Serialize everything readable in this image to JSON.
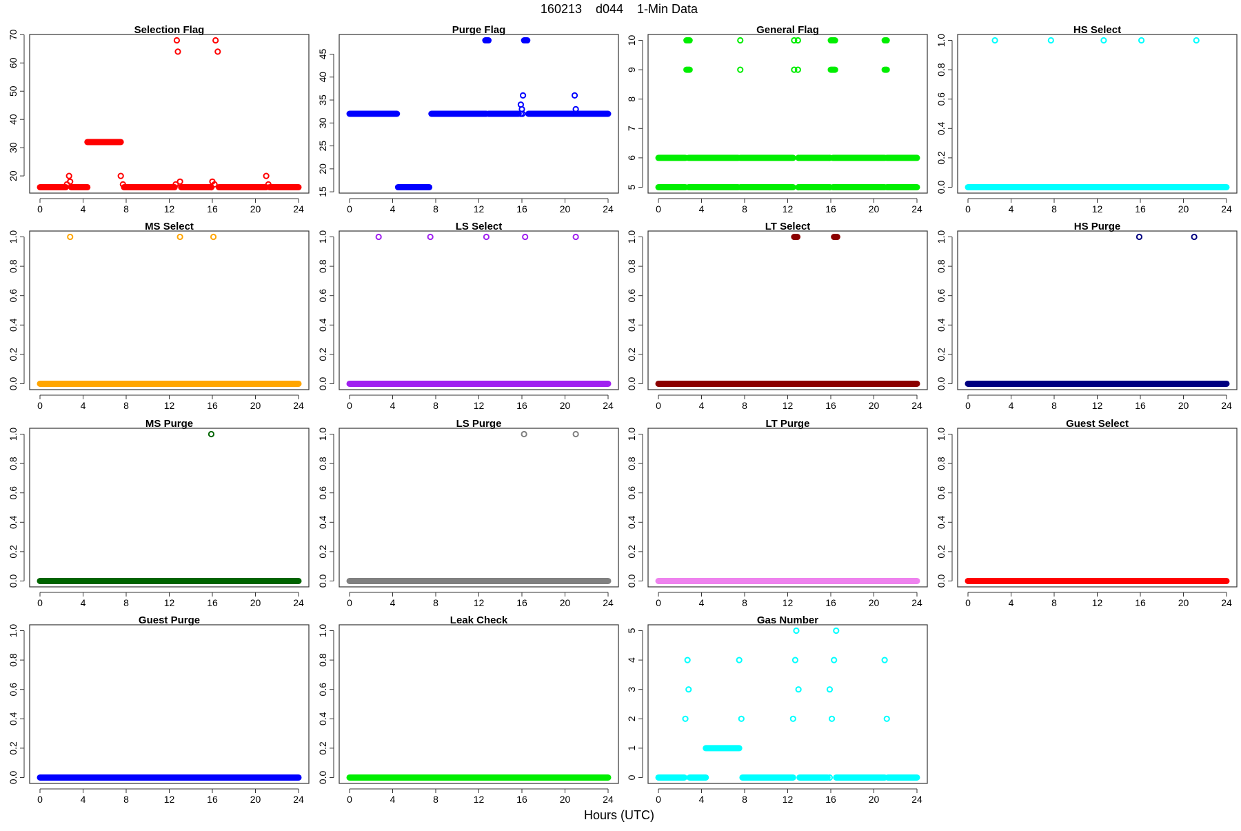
{
  "title": "160213    d044    1-Min Data",
  "xlabel": "Hours (UTC)",
  "chart_data": [
    {
      "type": "scatter",
      "title": "Selection Flag",
      "color": "#ff0000",
      "ylim": [
        16,
        68
      ],
      "yticks": [
        "20",
        "30",
        "40",
        "50",
        "60",
        "70"
      ],
      "ytick_values": [
        20,
        30,
        40,
        50,
        60,
        70
      ],
      "runs": [
        [
          0,
          2.4,
          16
        ],
        [
          2.9,
          4.4,
          16
        ],
        [
          4.4,
          7.5,
          32
        ],
        [
          7.8,
          12.5,
          16
        ],
        [
          13.1,
          15.8,
          16
        ],
        [
          16.6,
          21,
          16
        ],
        [
          21.3,
          24,
          16
        ]
      ],
      "points": [
        [
          2.5,
          17
        ],
        [
          2.7,
          20
        ],
        [
          2.8,
          18
        ],
        [
          7.5,
          20
        ],
        [
          7.7,
          17
        ],
        [
          12.6,
          17
        ],
        [
          12.7,
          68
        ],
        [
          12.8,
          64
        ],
        [
          13,
          18
        ],
        [
          15.9,
          16
        ],
        [
          16,
          18
        ],
        [
          16.2,
          17
        ],
        [
          16.3,
          68
        ],
        [
          16.5,
          64
        ],
        [
          21,
          20
        ],
        [
          21.2,
          17
        ]
      ]
    },
    {
      "type": "scatter",
      "title": "Purge Flag",
      "color": "#0000ff",
      "ylim": [
        16,
        48
      ],
      "yticks": [
        "15",
        "20",
        "25",
        "30",
        "35",
        "40",
        "45"
      ],
      "ytick_values": [
        15,
        20,
        25,
        30,
        35,
        40,
        45
      ],
      "runs": [
        [
          0,
          4.4,
          32
        ],
        [
          4.5,
          7.4,
          16
        ],
        [
          7.6,
          12.7,
          32
        ],
        [
          12.9,
          15.7,
          32
        ],
        [
          16.6,
          24,
          32
        ],
        [
          12.6,
          12.9,
          48
        ],
        [
          16.2,
          16.5,
          48
        ]
      ],
      "points": [
        [
          15.9,
          34
        ],
        [
          16,
          33
        ],
        [
          16.1,
          36
        ],
        [
          15.9,
          32
        ],
        [
          16.05,
          32
        ],
        [
          20.9,
          36
        ],
        [
          21,
          33
        ]
      ]
    },
    {
      "type": "scatter",
      "title": "General Flag",
      "color": "#00ee00",
      "ylim": [
        5,
        10
      ],
      "yticks": [
        "5",
        "6",
        "7",
        "8",
        "9",
        "10"
      ],
      "ytick_values": [
        5,
        6,
        7,
        8,
        9,
        10
      ],
      "runs": [
        [
          0,
          2.5,
          5
        ],
        [
          2.8,
          7.4,
          5
        ],
        [
          7.6,
          12.5,
          5
        ],
        [
          13.1,
          15.8,
          5
        ],
        [
          16.2,
          21,
          5
        ],
        [
          21.2,
          24,
          5
        ],
        [
          0,
          2.5,
          6
        ],
        [
          2.8,
          7.4,
          6
        ],
        [
          7.6,
          12.5,
          6
        ],
        [
          13.1,
          15.8,
          6
        ],
        [
          16.2,
          21,
          6
        ],
        [
          21.2,
          24,
          6
        ],
        [
          2.6,
          2.9,
          9
        ],
        [
          2.6,
          2.9,
          10
        ],
        [
          16.0,
          16.4,
          9
        ],
        [
          16.0,
          16.4,
          10
        ],
        [
          21.0,
          21.2,
          9
        ],
        [
          21.0,
          21.2,
          10
        ]
      ],
      "points": [
        [
          7.6,
          9
        ],
        [
          7.6,
          10
        ],
        [
          12.6,
          9
        ],
        [
          12.6,
          10
        ],
        [
          12.95,
          9
        ],
        [
          12.95,
          10
        ],
        [
          13.0,
          5
        ],
        [
          15.9,
          5
        ],
        [
          13.0,
          6
        ],
        [
          15.9,
          6
        ]
      ]
    },
    {
      "type": "scatter",
      "title": "HS Select",
      "color": "#00ffff",
      "ylim": [
        0,
        1
      ],
      "yticks": [
        "0.0",
        "0.2",
        "0.4",
        "0.6",
        "0.8",
        "1.0"
      ],
      "ytick_values": [
        0,
        0.2,
        0.4,
        0.6,
        0.8,
        1
      ],
      "runs": [
        [
          0,
          24,
          0
        ]
      ],
      "points": [
        [
          2.5,
          1
        ],
        [
          7.7,
          1
        ],
        [
          12.6,
          1
        ],
        [
          16.1,
          1
        ],
        [
          21.2,
          1
        ]
      ]
    },
    {
      "type": "scatter",
      "title": "MS Select",
      "color": "#ffa500",
      "ylim": [
        0,
        1
      ],
      "yticks": [
        "0.0",
        "0.2",
        "0.4",
        "0.6",
        "0.8",
        "1.0"
      ],
      "ytick_values": [
        0,
        0.2,
        0.4,
        0.6,
        0.8,
        1
      ],
      "runs": [
        [
          0,
          24,
          0
        ]
      ],
      "points": [
        [
          2.8,
          1
        ],
        [
          13,
          1
        ],
        [
          16.1,
          1
        ]
      ]
    },
    {
      "type": "scatter",
      "title": "LS Select",
      "color": "#a020f0",
      "ylim": [
        0,
        1
      ],
      "yticks": [
        "0.0",
        "0.2",
        "0.4",
        "0.6",
        "0.8",
        "1.0"
      ],
      "ytick_values": [
        0,
        0.2,
        0.4,
        0.6,
        0.8,
        1
      ],
      "runs": [
        [
          0,
          24,
          0
        ]
      ],
      "points": [
        [
          2.7,
          1
        ],
        [
          7.5,
          1
        ],
        [
          12.7,
          1
        ],
        [
          16.3,
          1
        ],
        [
          21,
          1
        ]
      ]
    },
    {
      "type": "scatter",
      "title": "LT Select",
      "color": "#8b0000",
      "ylim": [
        0,
        1
      ],
      "yticks": [
        "0.0",
        "0.2",
        "0.4",
        "0.6",
        "0.8",
        "1.0"
      ],
      "ytick_values": [
        0,
        0.2,
        0.4,
        0.6,
        0.8,
        1
      ],
      "runs": [
        [
          0,
          24,
          0
        ],
        [
          12.6,
          12.9,
          1
        ],
        [
          16.3,
          16.6,
          1
        ]
      ],
      "points": []
    },
    {
      "type": "scatter",
      "title": "HS Purge",
      "color": "#000080",
      "ylim": [
        0,
        1
      ],
      "yticks": [
        "0.0",
        "0.2",
        "0.4",
        "0.6",
        "0.8",
        "1.0"
      ],
      "ytick_values": [
        0,
        0.2,
        0.4,
        0.6,
        0.8,
        1
      ],
      "runs": [
        [
          0,
          24,
          0
        ]
      ],
      "points": [
        [
          15.9,
          1
        ],
        [
          21,
          1
        ]
      ]
    },
    {
      "type": "scatter",
      "title": "MS Purge",
      "color": "#006400",
      "ylim": [
        0,
        1
      ],
      "yticks": [
        "0.0",
        "0.2",
        "0.4",
        "0.6",
        "0.8",
        "1.0"
      ],
      "ytick_values": [
        0,
        0.2,
        0.4,
        0.6,
        0.8,
        1
      ],
      "runs": [
        [
          0,
          24,
          0
        ]
      ],
      "points": [
        [
          15.9,
          1
        ]
      ]
    },
    {
      "type": "scatter",
      "title": "LS Purge",
      "color": "#808080",
      "ylim": [
        0,
        1
      ],
      "yticks": [
        "0.0",
        "0.2",
        "0.4",
        "0.6",
        "0.8",
        "1.0"
      ],
      "ytick_values": [
        0,
        0.2,
        0.4,
        0.6,
        0.8,
        1
      ],
      "runs": [
        [
          0,
          24,
          0
        ]
      ],
      "points": [
        [
          16.2,
          1
        ],
        [
          21,
          1
        ]
      ]
    },
    {
      "type": "scatter",
      "title": "LT Purge",
      "color": "#ee82ee",
      "ylim": [
        0,
        1
      ],
      "yticks": [
        "0.0",
        "0.2",
        "0.4",
        "0.6",
        "0.8",
        "1.0"
      ],
      "ytick_values": [
        0,
        0.2,
        0.4,
        0.6,
        0.8,
        1
      ],
      "runs": [
        [
          0,
          24,
          0
        ]
      ],
      "points": []
    },
    {
      "type": "scatter",
      "title": "Guest Select",
      "color": "#ff0000",
      "ylim": [
        0,
        1
      ],
      "yticks": [
        "0.0",
        "0.2",
        "0.4",
        "0.6",
        "0.8",
        "1.0"
      ],
      "ytick_values": [
        0,
        0.2,
        0.4,
        0.6,
        0.8,
        1
      ],
      "runs": [
        [
          0,
          24,
          0
        ]
      ],
      "points": []
    },
    {
      "type": "scatter",
      "title": "Guest Purge",
      "color": "#0000ff",
      "ylim": [
        0,
        1
      ],
      "yticks": [
        "0.0",
        "0.2",
        "0.4",
        "0.6",
        "0.8",
        "1.0"
      ],
      "ytick_values": [
        0,
        0.2,
        0.4,
        0.6,
        0.8,
        1
      ],
      "runs": [
        [
          0,
          24,
          0
        ]
      ],
      "points": []
    },
    {
      "type": "scatter",
      "title": "Leak Check",
      "color": "#00ee00",
      "ylim": [
        0,
        1
      ],
      "yticks": [
        "0.0",
        "0.2",
        "0.4",
        "0.6",
        "0.8",
        "1.0"
      ],
      "ytick_values": [
        0,
        0.2,
        0.4,
        0.6,
        0.8,
        1
      ],
      "runs": [
        [
          0,
          24,
          0
        ]
      ],
      "points": []
    },
    {
      "type": "scatter",
      "title": "Gas Number",
      "color": "#00ffff",
      "ylim": [
        0,
        5
      ],
      "yticks": [
        "0",
        "1",
        "2",
        "3",
        "4",
        "5"
      ],
      "ytick_values": [
        0,
        1,
        2,
        3,
        4,
        5
      ],
      "runs": [
        [
          0,
          2.4,
          0
        ],
        [
          2.9,
          4.4,
          0
        ],
        [
          4.4,
          7.5,
          1
        ],
        [
          7.8,
          12.5,
          0
        ],
        [
          13.1,
          15.7,
          0
        ],
        [
          16.5,
          21,
          0
        ],
        [
          21.3,
          24,
          0
        ]
      ],
      "points": [
        [
          2.5,
          2
        ],
        [
          2.7,
          4
        ],
        [
          2.8,
          3
        ],
        [
          7.5,
          4
        ],
        [
          7.7,
          2
        ],
        [
          12.5,
          2
        ],
        [
          12.7,
          4
        ],
        [
          12.8,
          5
        ],
        [
          13,
          3
        ],
        [
          15.9,
          3
        ],
        [
          16.1,
          2
        ],
        [
          16.3,
          4
        ],
        [
          16.5,
          5
        ],
        [
          21,
          4
        ],
        [
          21.2,
          2
        ],
        [
          15.9,
          0
        ]
      ]
    }
  ],
  "xticks": [
    "0",
    "4",
    "8",
    "12",
    "16",
    "20",
    "24"
  ],
  "xtick_values": [
    0,
    4,
    8,
    12,
    16,
    20,
    24
  ],
  "xlim": [
    0,
    24
  ]
}
